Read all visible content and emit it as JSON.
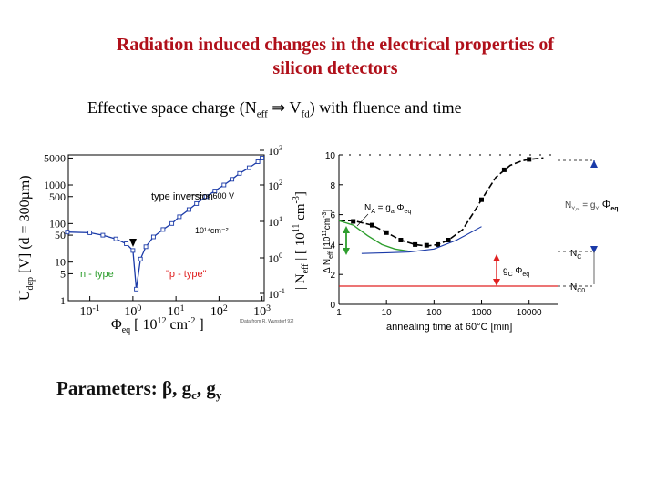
{
  "slide": {
    "title_line1": "Radiation induced changes in the electrical properties of",
    "title_line2": "silicon detectors",
    "subtitle_pre": "Effective space charge (N",
    "subtitle_sub1": "eff",
    "subtitle_arrow": "⇒",
    "subtitle_mid": " V",
    "subtitle_sub2": "fd",
    "subtitle_post": ") with fluence and time",
    "params_pre": "Parameters: β, g",
    "params_sub1": "c",
    "params_mid": ", g",
    "params_sub2": "y"
  },
  "colors": {
    "title": "#b0101a",
    "annealing_curve": "#000000",
    "green": "#2e9e2e",
    "red": "#e02020",
    "blue": "#1a3aa8"
  },
  "chart_data": [
    {
      "type": "scatter",
      "ylabel_left": "U",
      "ylabel_left_sub": "dep",
      "ylabel_left_rest": " [V]   (d = 300µm)",
      "ylabel_right": "| N",
      "ylabel_right_sub": "eff",
      "ylabel_right_rest": " | [ 10",
      "ylabel_right_sup": "11",
      "ylabel_right_end": " cm",
      "ylabel_right_sup2": "-3",
      "ylabel_right_close": "]",
      "xlabel": "Φ",
      "xlabel_sub": "eq",
      "xlabel_rest": " [ 10",
      "xlabel_sup": "12",
      "xlabel_end": " cm",
      "xlabel_sup2": "-2",
      "xlabel_close": " ]",
      "x_scale": "log",
      "x_ticks": [
        {
          "value": 0.1,
          "base": "10",
          "exp": "-1"
        },
        {
          "value": 1,
          "base": "10",
          "exp": "0"
        },
        {
          "value": 10,
          "base": "10",
          "exp": "1"
        },
        {
          "value": 100,
          "base": "10",
          "exp": "2"
        },
        {
          "value": 1000,
          "base": "10",
          "exp": "3"
        }
      ],
      "y_left_ticks": [
        "5000",
        "1000",
        "500",
        "100",
        "50",
        "10",
        "5",
        "1"
      ],
      "y_right_ticks": [
        {
          "base": "10",
          "exp": "3"
        },
        {
          "base": "10",
          "exp": "2"
        },
        {
          "base": "10",
          "exp": "1"
        },
        {
          "base": "10",
          "exp": "0"
        },
        {
          "base": "10",
          "exp": "-1"
        }
      ],
      "annotations": {
        "type_inversion": "type inversion",
        "v600": "600 V",
        "fluence_unit": "10¹⁴cm⁻²",
        "n_type": "n - type",
        "p_type": "\"p - type\"",
        "credit": "[Data from R. Wunstorf 92]"
      },
      "points_note": "Udep decreases from ~60 V to a minimum near 1e12 cm-2, then increases to ~5000 V at 1e3",
      "series": [
        {
          "values_x": [
            0.03,
            0.1,
            0.2,
            0.4,
            0.7,
            1.0,
            1.2,
            1.5,
            2,
            3,
            5,
            8,
            12,
            20,
            30,
            50,
            80,
            130,
            200,
            300,
            500,
            800,
            1000
          ],
          "values_y": [
            60,
            58,
            50,
            40,
            30,
            20,
            2,
            12,
            25,
            45,
            70,
            100,
            150,
            230,
            330,
            500,
            700,
            1000,
            1400,
            2000,
            2800,
            4000,
            5000
          ]
        }
      ]
    },
    {
      "type": "line",
      "ylabel": "Δ N",
      "ylabel_sub": "eff",
      "ylabel_rest": " [10",
      "ylabel_sup": "11",
      "ylabel_end": "cm",
      "ylabel_sup2": "-3",
      "ylabel_close": "]",
      "xlabel": "annealing time at 60°C [min]",
      "x_scale": "log",
      "x_ticks": [
        "1",
        "10",
        "100",
        "1000",
        "10000"
      ],
      "ylim": [
        0,
        10
      ],
      "y_ticks": [
        "0",
        "2",
        "4",
        "6",
        "8",
        "10"
      ],
      "labels": {
        "na_main": "N",
        "na_sub": "A",
        "na_rest": " = g",
        "na_sub2": "a",
        "na_end": " Φ",
        "na_sub3": "eq",
        "gc_main": "g",
        "gc_sub": "C",
        "gc_end": " Φ",
        "gc_sub2": "eq",
        "ny_main": "N",
        "ny_sub": "Y,∞",
        "ny_rest": " = g",
        "ny_sub2": "Y",
        "ny_end": " Φ",
        "ny_sub3": "eq",
        "nc_main": "N",
        "nc_sub": "C",
        "nc0_main": "N",
        "nc0_sub": "C0"
      },
      "series": [
        {
          "x": [
            1,
            2,
            5,
            10,
            20,
            40,
            70,
            120,
            200,
            400,
            700,
            1000,
            2000,
            4000,
            7000,
            10000,
            20000
          ],
          "y": [
            5.6,
            5.6,
            5.3,
            4.8,
            4.3,
            4.0,
            3.9,
            4.0,
            4.3,
            5.0,
            6.2,
            7.0,
            8.5,
            9.3,
            9.6,
            9.7,
            9.8
          ]
        }
      ]
    }
  ]
}
